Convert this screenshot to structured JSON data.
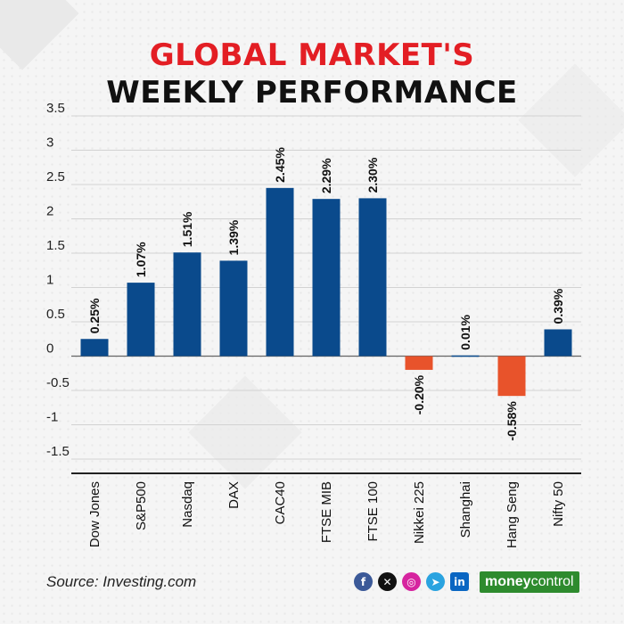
{
  "header": {
    "title_line1": "GLOBAL MARKET'S",
    "title_line2": "WEEKLY PERFORMANCE"
  },
  "chart_data": {
    "type": "bar",
    "categories": [
      "Dow Jones",
      "S&P500",
      "Nasdaq",
      "DAX",
      "CAC40",
      "FTSE MIB",
      "FTSE 100",
      "Nikkei 225",
      "Shanghai",
      "Hang Seng",
      "Nifty 50"
    ],
    "values": [
      0.25,
      1.07,
      1.51,
      1.39,
      2.45,
      2.29,
      2.3,
      -0.2,
      0.01,
      -0.58,
      0.39
    ],
    "labels": [
      "0.25%",
      "1.07%",
      "1.51%",
      "1.39%",
      "2.45%",
      "2.29%",
      "2.30%",
      "-0.20%",
      "0.01%",
      "-0.58%",
      "0.39%"
    ],
    "ylim": [
      -1.5,
      3.5
    ],
    "yticks": [
      3.5,
      3,
      2.5,
      2,
      1.5,
      1,
      0.5,
      0,
      -0.5,
      -1,
      -1.5
    ],
    "ytick_labels": [
      "3.5",
      "3",
      "2.5",
      "2",
      "1.5",
      "1",
      "0.5",
      "0",
      "-0.5",
      "-1",
      "-1.5"
    ],
    "grid": true,
    "colors": {
      "positive": "#0a4a8c",
      "negative": "#e8532b"
    }
  },
  "footer": {
    "source": "Source: Investing.com",
    "social_icons": [
      "facebook-icon",
      "x-icon",
      "instagram-icon",
      "telegram-icon",
      "linkedin-icon"
    ],
    "brand_part1": "money",
    "brand_part2": "control"
  }
}
